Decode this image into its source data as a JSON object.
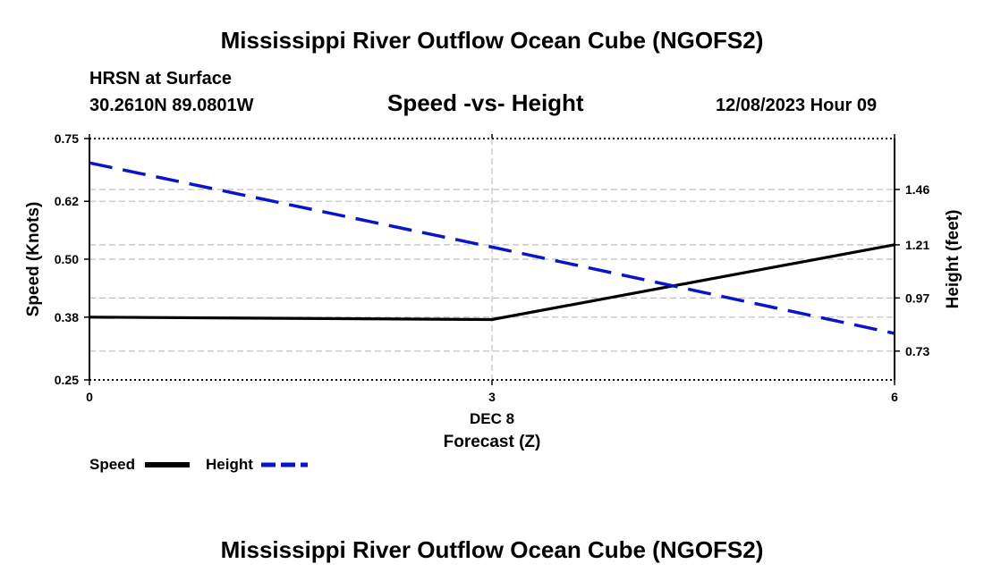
{
  "header": {
    "title": "Mississippi River Outflow Ocean Cube (NGOFS2)",
    "station": "HRSN at Surface",
    "location": "30.2610N  89.0801W",
    "chart_title": "Speed -vs- Height",
    "datetime": "12/08/2023 Hour 09"
  },
  "footer": {
    "title": "Mississippi River Outflow Ocean Cube (NGOFS2)"
  },
  "legend": {
    "speed_label": "Speed",
    "height_label": "Height"
  },
  "chart_data": {
    "type": "line",
    "title": "Speed -vs- Height",
    "xlabel": "Forecast (Z)",
    "x_date_label": "DEC 8",
    "ylabel": "Speed (Knots)",
    "y2label": "Height (feet)",
    "x": [
      0,
      3,
      6
    ],
    "xticks": [
      "0",
      "3",
      "6"
    ],
    "xlim": [
      0,
      6
    ],
    "ylim": [
      0.25,
      0.75
    ],
    "yticks": [
      "0.25",
      "0.38",
      "0.50",
      "0.62",
      "0.75"
    ],
    "y2lim": [
      0.6,
      1.69
    ],
    "y2ticks": [
      "0.73",
      "0.97",
      "1.21",
      "1.46"
    ],
    "grid": true,
    "series": [
      {
        "name": "Speed",
        "axis": "left",
        "color": "#000000",
        "dash": "solid",
        "values": [
          0.38,
          0.375,
          0.53
        ]
      },
      {
        "name": "Height",
        "axis": "right",
        "color": "#0a14c8",
        "dash": "dashed",
        "values": [
          1.58,
          1.2,
          0.81
        ]
      }
    ]
  }
}
